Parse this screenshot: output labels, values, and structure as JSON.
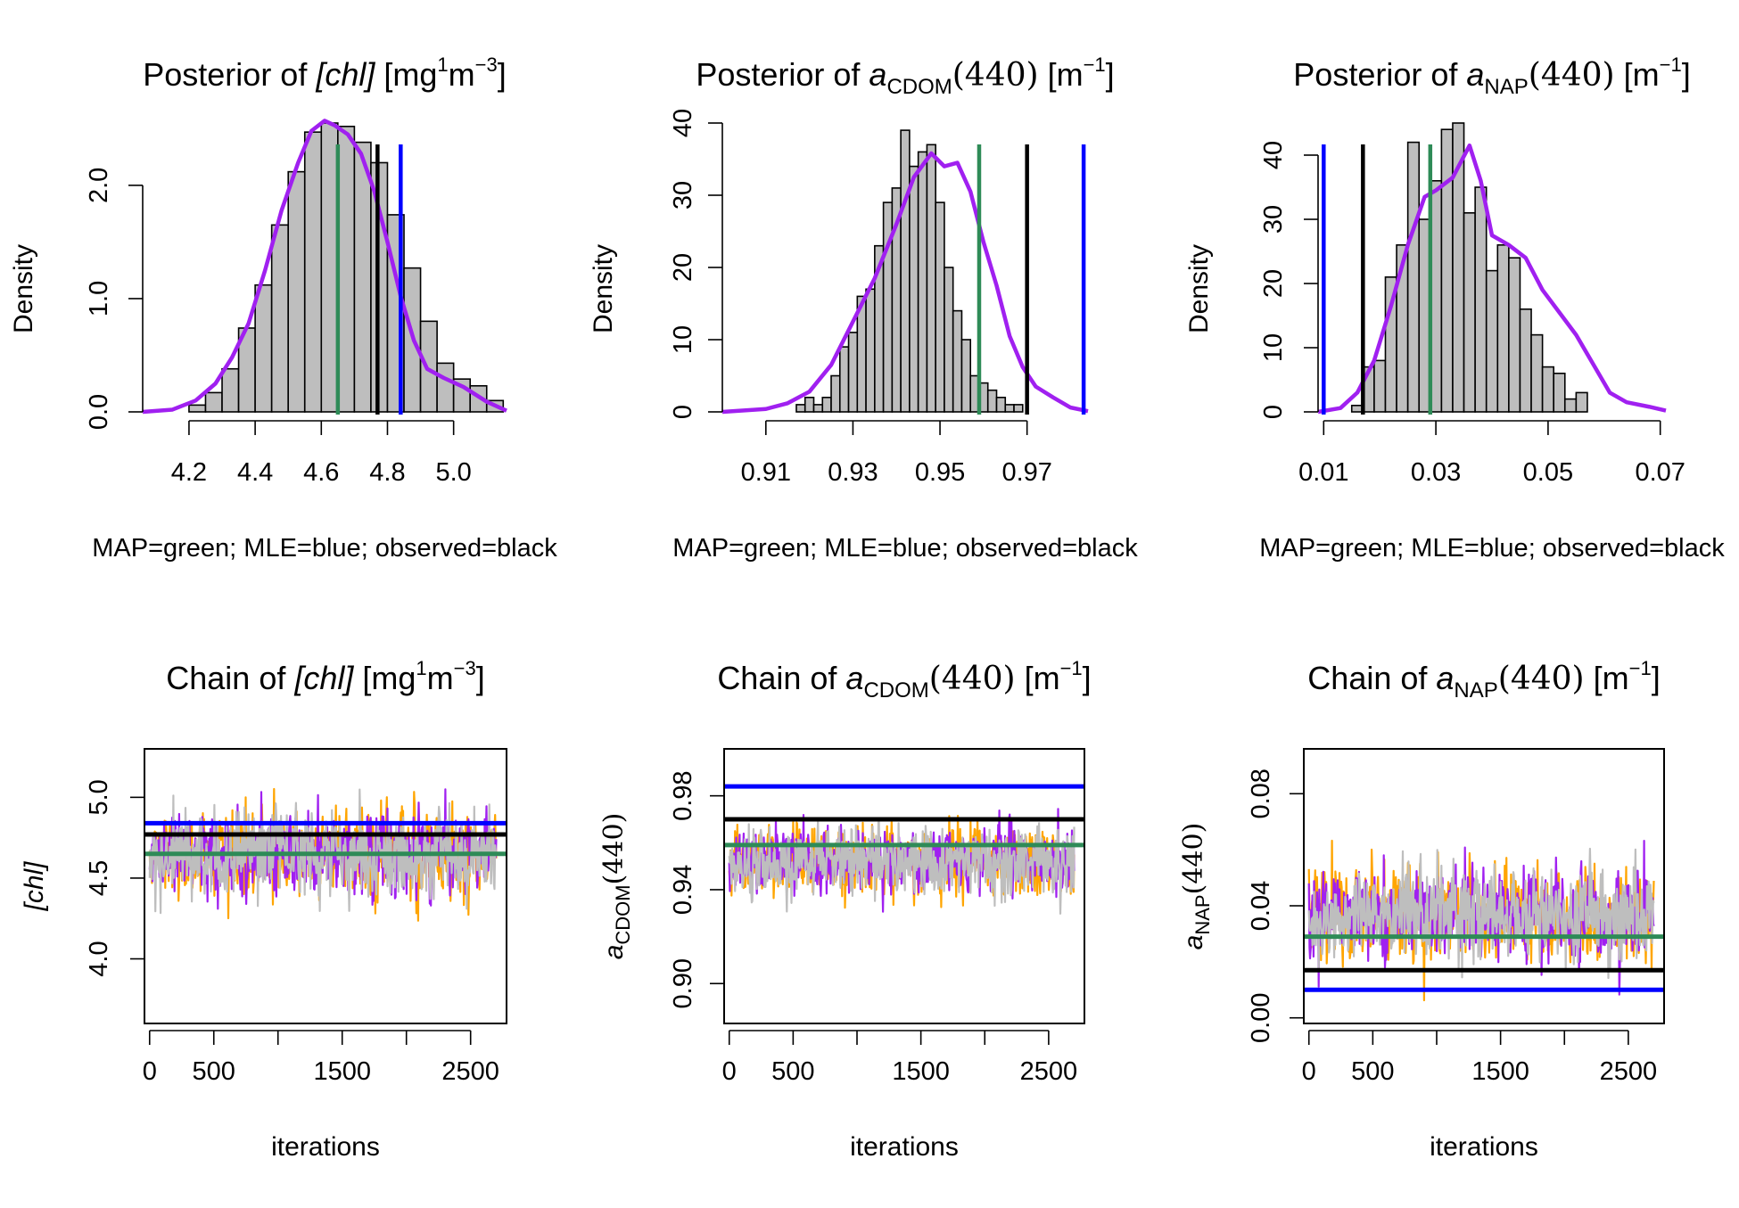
{
  "colors": {
    "map": "#2e8b57",
    "mle": "#0000ff",
    "observed": "#000000",
    "density": "#a020f0",
    "bar_fill": "#bebebe",
    "chain_orange": "#ffa500",
    "chain_purple": "#a020f0",
    "chain_gray": "#bebebe"
  },
  "chart_data": [
    {
      "id": "hist_chl",
      "type": "bar",
      "title": "Posterior of [chl] [mg^1 m^-3]",
      "title_parts": {
        "prefix": "Posterior of ",
        "var": "[chl]",
        "suffix": " [mg",
        "sup1": "1",
        "mid": "m",
        "sup2": "−3",
        "end": "]"
      },
      "xlabel": "MAP=green; MLE=blue; observed=black",
      "ylabel": "Density",
      "xlim": [
        4.06,
        5.16
      ],
      "ylim": [
        0,
        2.55
      ],
      "xticks": [
        4.2,
        4.4,
        4.6,
        4.8,
        5.0
      ],
      "xtick_labels": [
        "4.2",
        "4.4",
        "4.6",
        "4.8",
        "5.0"
      ],
      "yticks": [
        0,
        1,
        2
      ],
      "ytick_labels": [
        "0.0",
        "1.0",
        "2.0"
      ],
      "bin_start": 4.2,
      "bin_width": 0.05,
      "values": [
        0.06,
        0.17,
        0.38,
        0.74,
        1.12,
        1.65,
        2.12,
        2.47,
        2.55,
        2.52,
        2.38,
        2.2,
        1.74,
        1.27,
        0.8,
        0.43,
        0.29,
        0.23,
        0.1
      ],
      "density_x": [
        4.06,
        4.15,
        4.22,
        4.28,
        4.33,
        4.38,
        4.43,
        4.48,
        4.53,
        4.57,
        4.61,
        4.64,
        4.68,
        4.72,
        4.76,
        4.8,
        4.84,
        4.88,
        4.92,
        4.97,
        5.03,
        5.1,
        5.16
      ],
      "density_y": [
        0.0,
        0.02,
        0.1,
        0.25,
        0.48,
        0.78,
        1.25,
        1.78,
        2.2,
        2.48,
        2.57,
        2.53,
        2.45,
        2.28,
        1.95,
        1.5,
        1.02,
        0.63,
        0.38,
        0.3,
        0.22,
        0.09,
        0.01
      ],
      "vlines": {
        "map": 4.65,
        "observed": 4.77,
        "mle": 4.84
      }
    },
    {
      "id": "hist_cdom",
      "type": "bar",
      "title": "Posterior of a_CDOM(440) [m^-1]",
      "title_parts": {
        "prefix": "Posterior of ",
        "var": "a",
        "sub": "CDOM",
        "paren": "(440)",
        "suffix": " [m",
        "sup": "−1",
        "end": "]"
      },
      "xlabel": "MAP=green; MLE=blue; observed=black",
      "ylabel": "Density",
      "xlim": [
        0.9,
        0.984
      ],
      "ylim": [
        0,
        40
      ],
      "xticks": [
        0.91,
        0.93,
        0.95,
        0.97
      ],
      "xtick_labels": [
        "0.91",
        "0.93",
        "0.95",
        "0.97"
      ],
      "yticks": [
        0,
        10,
        20,
        30,
        40
      ],
      "ytick_labels": [
        "0",
        "10",
        "20",
        "30",
        "40"
      ],
      "bin_start": 0.917,
      "bin_width": 0.002,
      "values": [
        1,
        2,
        1,
        2,
        5,
        9,
        11,
        16,
        17,
        23,
        29,
        31,
        39,
        34,
        36,
        37,
        29,
        20,
        14,
        10,
        5,
        4,
        3,
        2,
        1,
        1
      ],
      "density_x": [
        0.9,
        0.91,
        0.915,
        0.92,
        0.925,
        0.93,
        0.935,
        0.94,
        0.944,
        0.948,
        0.951,
        0.954,
        0.957,
        0.96,
        0.963,
        0.966,
        0.969,
        0.972,
        0.976,
        0.98,
        0.984
      ],
      "density_y": [
        0.0,
        0.4,
        1.2,
        2.8,
        6.5,
        12.5,
        18.5,
        26.0,
        32.5,
        35.8,
        34.0,
        34.5,
        30.5,
        23.5,
        17.5,
        10.5,
        6.2,
        3.5,
        2.0,
        0.6,
        0.1
      ],
      "vlines": {
        "map": 0.959,
        "observed": 0.97,
        "mle": 0.983
      }
    },
    {
      "id": "hist_nap",
      "type": "bar",
      "title": "Posterior of a_NAP(440) [m^-1]",
      "title_parts": {
        "prefix": "Posterior of ",
        "var": "a",
        "sub": "NAP",
        "paren": "(440)",
        "suffix": " [m",
        "sup": "−1",
        "end": "]"
      },
      "xlabel": "MAP=green; MLE=blue; observed=black",
      "ylabel": "Density",
      "xlim": [
        0.009,
        0.071
      ],
      "ylim": [
        0,
        45
      ],
      "xticks": [
        0.01,
        0.03,
        0.05,
        0.07
      ],
      "xtick_labels": [
        "0.01",
        "0.03",
        "0.05",
        "0.07"
      ],
      "yticks": [
        0,
        10,
        20,
        30,
        40
      ],
      "ytick_labels": [
        "0",
        "10",
        "20",
        "30",
        "40"
      ],
      "bin_start": 0.015,
      "bin_width": 0.002,
      "values": [
        1,
        7,
        8,
        21,
        26,
        42,
        30,
        36,
        44,
        45,
        31,
        35,
        22,
        26,
        24,
        16,
        12,
        7,
        6,
        2,
        3
      ],
      "density_x": [
        0.009,
        0.013,
        0.016,
        0.019,
        0.022,
        0.025,
        0.028,
        0.03,
        0.033,
        0.036,
        0.038,
        0.04,
        0.043,
        0.046,
        0.049,
        0.052,
        0.055,
        0.058,
        0.061,
        0.064,
        0.068,
        0.071
      ],
      "density_y": [
        0.0,
        0.6,
        3.0,
        8.0,
        16.5,
        26.0,
        33.5,
        34.5,
        36.5,
        41.5,
        36.0,
        27.5,
        26.0,
        24.0,
        19.0,
        15.5,
        12.0,
        7.5,
        3.0,
        1.5,
        0.8,
        0.2
      ],
      "vlines": {
        "map": 0.029,
        "observed": 0.017,
        "mle": 0.01
      }
    },
    {
      "id": "trace_chl",
      "type": "line",
      "title": "Chain of [chl] [mg^1 m^-3]",
      "title_parts": {
        "prefix": "Chain of ",
        "var": "[chl]",
        "suffix": " [mg",
        "sup1": "1",
        "mid": "m",
        "sup2": "−3",
        "end": "]"
      },
      "xlabel": "iterations",
      "ylabel": "[chl]",
      "xlim": [
        -40,
        2780
      ],
      "ylim": [
        3.6,
        5.3
      ],
      "xticks": [
        0,
        500,
        1000,
        1500,
        2000,
        2500
      ],
      "xtick_labels": [
        "0",
        "500",
        "",
        "1500",
        "",
        "2500"
      ],
      "yticks": [
        4.0,
        4.5,
        5.0
      ],
      "ytick_labels": [
        "4.0",
        "4.5",
        "5.0"
      ],
      "iterations": 2700,
      "chain_center": 4.65,
      "chain_sd": 0.25,
      "hlines": {
        "map": 4.65,
        "observed": 4.77,
        "mle": 4.84
      }
    },
    {
      "id": "trace_cdom",
      "type": "line",
      "title": "Chain of a_CDOM(440) [m^-1]",
      "title_parts": {
        "prefix": "Chain of ",
        "var": "a",
        "sub": "CDOM",
        "paren": "(440)",
        "suffix": " [m",
        "sup": "−1",
        "end": "]"
      },
      "xlabel": "iterations",
      "ylabel": "a_CDOM(440)",
      "xlim": [
        -40,
        2780
      ],
      "ylim": [
        0.883,
        1.0
      ],
      "xticks": [
        0,
        500,
        1000,
        1500,
        2000,
        2500
      ],
      "xtick_labels": [
        "0",
        "500",
        "",
        "1500",
        "",
        "2500"
      ],
      "yticks": [
        0.9,
        0.94,
        0.98
      ],
      "ytick_labels": [
        "0.90",
        "0.94",
        "0.98"
      ],
      "iterations": 2700,
      "chain_center": 0.952,
      "chain_sd": 0.014,
      "hlines": {
        "map": 0.959,
        "observed": 0.97,
        "mle": 0.984
      }
    },
    {
      "id": "trace_nap",
      "type": "line",
      "title": "Chain of a_NAP(440) [m^-1]",
      "title_parts": {
        "prefix": "Chain of ",
        "var": "a",
        "sub": "NAP",
        "paren": "(440)",
        "suffix": " [m",
        "sup": "−1",
        "end": "]"
      },
      "xlabel": "iterations",
      "ylabel": "a_NAP(440)",
      "xlim": [
        -40,
        2780
      ],
      "ylim": [
        -0.002,
        0.096
      ],
      "xticks": [
        0,
        500,
        1000,
        1500,
        2000,
        2500
      ],
      "xtick_labels": [
        "0",
        "500",
        "",
        "1500",
        "",
        "2500"
      ],
      "yticks": [
        0.0,
        0.04,
        0.08
      ],
      "ytick_labels": [
        "0.00",
        "0.04",
        "0.08"
      ],
      "iterations": 2700,
      "chain_center": 0.037,
      "chain_sd": 0.016,
      "hlines": {
        "map": 0.029,
        "observed": 0.017,
        "mle": 0.01
      }
    }
  ]
}
